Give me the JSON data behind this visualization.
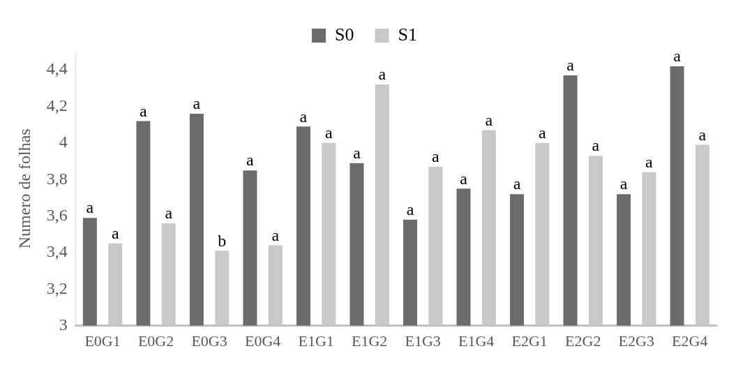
{
  "chart_data": {
    "type": "bar",
    "ylabel": "Numero de folhas",
    "categories": [
      "E0G1",
      "E0G2",
      "E0G3",
      "E0G4",
      "E1G1",
      "E1G2",
      "E1G3",
      "E1G4",
      "E2G1",
      "E2G2",
      "E2G3",
      "E2G4"
    ],
    "series": [
      {
        "name": "S0",
        "color": "#6b6b6b",
        "values": [
          3.59,
          4.12,
          4.16,
          3.85,
          4.09,
          3.89,
          3.58,
          3.75,
          3.72,
          4.37,
          3.72,
          4.42
        ],
        "value_labels": [
          "a",
          "a",
          "a",
          "a",
          "a",
          "a",
          "a",
          "a",
          "a",
          "a",
          "a",
          "a"
        ]
      },
      {
        "name": "S1",
        "color": "#c8c8c8",
        "values": [
          3.45,
          3.56,
          3.41,
          3.44,
          4.0,
          4.32,
          3.87,
          4.07,
          4.0,
          3.93,
          3.84,
          3.99
        ],
        "value_labels": [
          "a",
          "a",
          "b",
          "a",
          "a",
          "a",
          "a",
          "a",
          "a",
          "a",
          "a",
          "a"
        ]
      }
    ],
    "ylim": [
      3,
      4.5
    ],
    "yticks": [
      3,
      {
        "value": 3.2,
        "label": "3,2"
      },
      {
        "value": 3.4,
        "label": "3,4"
      },
      {
        "value": 3.6,
        "label": "3,6"
      },
      {
        "value": 3.8,
        "label": "3,8"
      },
      4,
      {
        "value": 4.2,
        "label": "4,2"
      },
      {
        "value": 4.4,
        "label": "4,4"
      }
    ],
    "grid": false,
    "legend": "top"
  }
}
